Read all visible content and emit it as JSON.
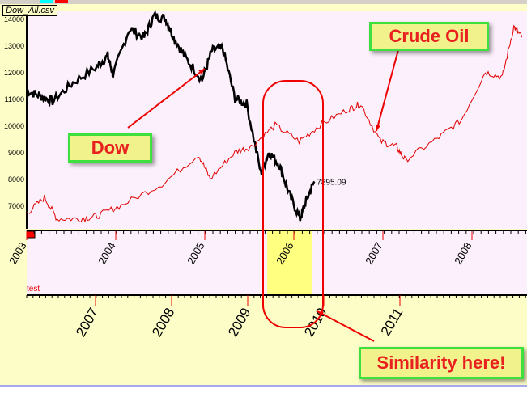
{
  "window": {
    "title": "Dow_All.csv",
    "panel_label": "test",
    "last_value_label": "7895.09"
  },
  "annotations": {
    "dow": "Dow",
    "crude_oil": "Crude Oil",
    "similarity": "Similarity here!"
  },
  "colors": {
    "dow": "#000000",
    "oil": "#e00000",
    "plot_bg": "#fbf0fb",
    "highlight": "#ffff80",
    "callout_border": "#3de03d",
    "callout_text": "#e82020"
  },
  "chart_data": {
    "type": "line",
    "yticks": [
      7000,
      8000,
      9000,
      10000,
      11000,
      12000,
      13000,
      14000
    ],
    "ylim": [
      6200,
      14300
    ],
    "xlim": [
      2003,
      2008.65
    ],
    "xticks_top": [
      "2003",
      "2004",
      "2005",
      "2006",
      "2007",
      "2008"
    ],
    "xticks_bottom": [
      "2007",
      "2008",
      "2009",
      "2010",
      "2011"
    ],
    "highlight_range": [
      2005.7,
      2006.2
    ],
    "series": [
      {
        "name": "Dow",
        "points": [
          [
            2003.0,
            11300
          ],
          [
            2003.15,
            11100
          ],
          [
            2003.29,
            10900
          ],
          [
            2003.52,
            11600
          ],
          [
            2003.79,
            12200
          ],
          [
            2003.91,
            12600
          ],
          [
            2003.97,
            11900
          ],
          [
            2004.15,
            13600
          ],
          [
            2004.32,
            13300
          ],
          [
            2004.43,
            14100
          ],
          [
            2004.56,
            14000
          ],
          [
            2004.65,
            13300
          ],
          [
            2004.79,
            12500
          ],
          [
            2004.97,
            11700
          ],
          [
            2005.08,
            12800
          ],
          [
            2005.2,
            12900
          ],
          [
            2005.34,
            11000
          ],
          [
            2005.47,
            10800
          ],
          [
            2005.63,
            8200
          ],
          [
            2005.72,
            9000
          ],
          [
            2005.84,
            8500
          ],
          [
            2005.95,
            7400
          ],
          [
            2006.07,
            6500
          ],
          [
            2006.14,
            7200
          ],
          [
            2006.23,
            7895
          ]
        ]
      },
      {
        "name": "Crude Oil",
        "points": [
          [
            2003.0,
            6700
          ],
          [
            2003.2,
            7300
          ],
          [
            2003.34,
            6500
          ],
          [
            2003.61,
            6500
          ],
          [
            2003.79,
            6600
          ],
          [
            2004.06,
            7000
          ],
          [
            2004.52,
            7800
          ],
          [
            2004.93,
            8900
          ],
          [
            2005.06,
            8000
          ],
          [
            2005.34,
            9000
          ],
          [
            2005.52,
            9200
          ],
          [
            2005.79,
            10000
          ],
          [
            2006.06,
            9400
          ],
          [
            2006.29,
            10000
          ],
          [
            2006.61,
            10600
          ],
          [
            2006.75,
            10800
          ],
          [
            2006.97,
            9400
          ],
          [
            2007.15,
            9200
          ],
          [
            2007.25,
            8700
          ],
          [
            2007.61,
            9500
          ],
          [
            2007.88,
            10200
          ],
          [
            2008.15,
            12000
          ],
          [
            2008.34,
            11800
          ],
          [
            2008.47,
            13700
          ],
          [
            2008.56,
            13300
          ]
        ]
      }
    ]
  }
}
